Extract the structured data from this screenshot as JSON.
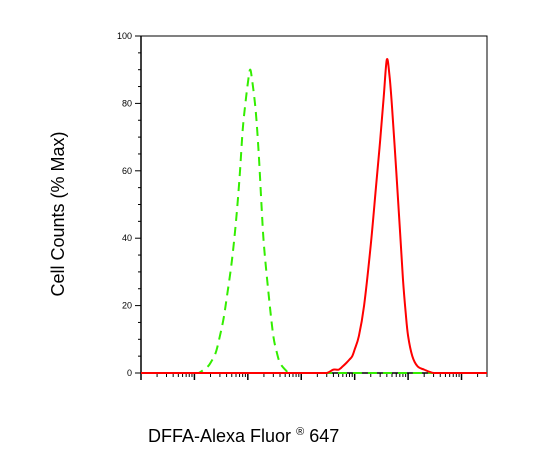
{
  "chart_data": {
    "type": "line",
    "xlabel_main": "DFFA-Alexa Fluor",
    "xlabel_sup": "®",
    "xlabel_tail": " 647",
    "ylabel": "Cell Counts (% Max)",
    "xscale": "log",
    "xlim": [
      1,
      3000000
    ],
    "ylim": [
      0,
      100
    ],
    "yticks": [
      0,
      20,
      40,
      60,
      80,
      100
    ],
    "ytick_labels": [
      "0",
      "20",
      "40",
      "60",
      "80",
      "100"
    ],
    "grid": false,
    "series": [
      {
        "color": "#33ee00",
        "style": "dashed",
        "x": [
          10,
          12,
          15,
          18,
          20,
          25,
          30,
          35,
          40,
          50,
          60,
          70,
          80,
          90,
          100,
          110,
          120,
          140,
          160,
          180,
          200,
          250,
          300,
          350,
          400,
          500,
          600,
          800,
          1000,
          1500,
          2000,
          5000,
          10000,
          100000,
          1000000,
          3000000
        ],
        "values": [
          0,
          0,
          1,
          2,
          3,
          6,
          11,
          16,
          22,
          33,
          45,
          58,
          72,
          80,
          86,
          90,
          87,
          78,
          65,
          50,
          38,
          22,
          11,
          6,
          3,
          1,
          0,
          0,
          0,
          0,
          0,
          0,
          0,
          0,
          0,
          0
        ]
      },
      {
        "color": "#ff0000",
        "style": "solid",
        "x": [
          1,
          10,
          100,
          500,
          1000,
          2000,
          3000,
          4000,
          5000,
          6000,
          7000,
          8000,
          9000,
          10000,
          12000,
          15000,
          20000,
          25000,
          30000,
          35000,
          40000,
          45000,
          50000,
          60000,
          70000,
          80000,
          90000,
          100000,
          120000,
          150000,
          200000,
          300000,
          500000,
          1000000,
          3000000
        ],
        "values": [
          0,
          0,
          0,
          0,
          0,
          0,
          0,
          1,
          1,
          2,
          3,
          4,
          5,
          7,
          11,
          20,
          38,
          55,
          69,
          82,
          93,
          88,
          79,
          60,
          43,
          28,
          18,
          11,
          5,
          2,
          1,
          0,
          0,
          0,
          0
        ]
      }
    ]
  }
}
